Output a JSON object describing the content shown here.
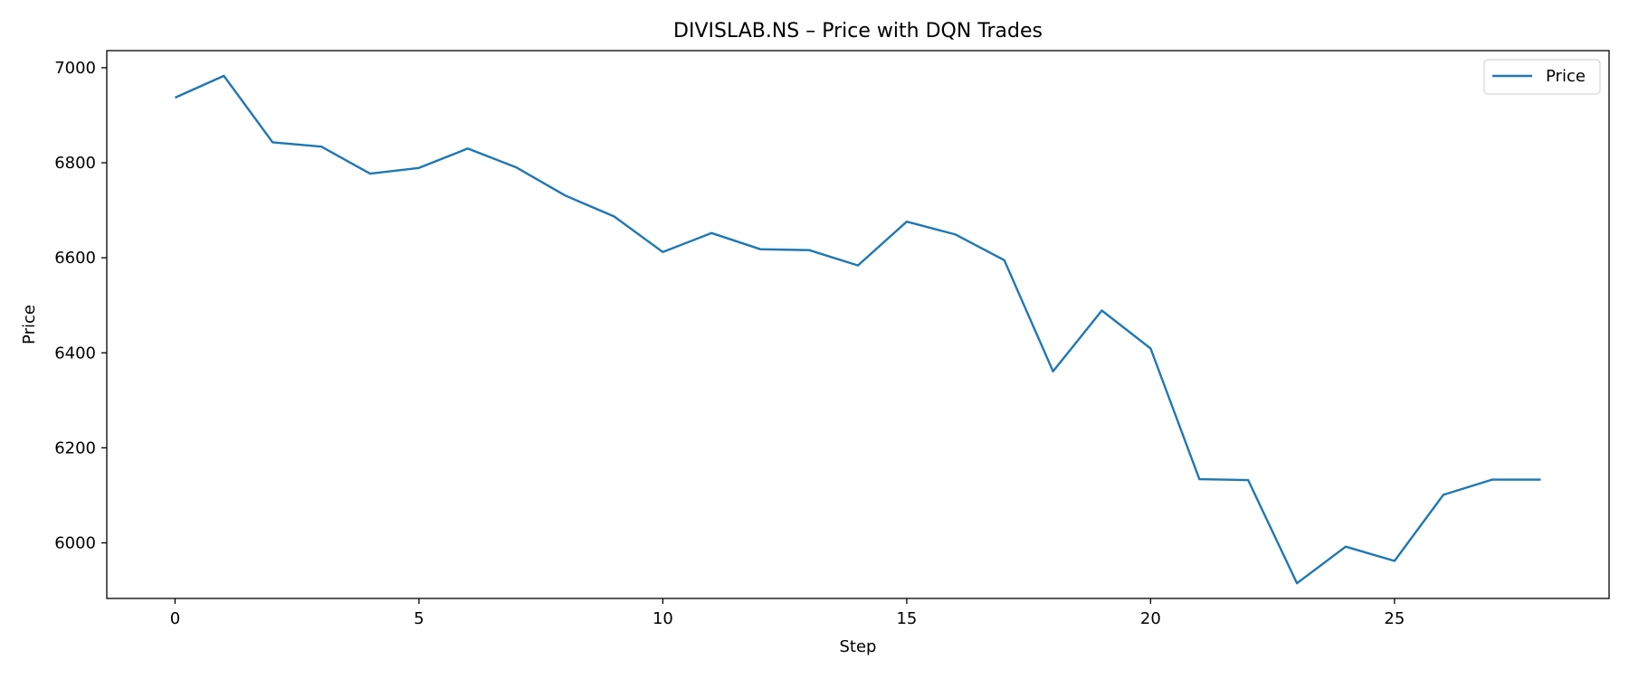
{
  "chart_data": {
    "type": "line",
    "title": "DIVISLAB.NS – Price with DQN Trades",
    "xlabel": "Step",
    "ylabel": "Price",
    "xlim": [
      -1.4,
      29.4
    ],
    "ylim": [
      5883,
      7036
    ],
    "xticks": [
      0,
      5,
      10,
      15,
      20,
      25
    ],
    "yticks": [
      6000,
      6200,
      6400,
      6600,
      6800,
      7000
    ],
    "grid": false,
    "legend_position": "top-right",
    "x": [
      0,
      1,
      2,
      3,
      4,
      5,
      6,
      7,
      8,
      9,
      10,
      11,
      12,
      13,
      14,
      15,
      16,
      17,
      18,
      19,
      20,
      21,
      22,
      23,
      24,
      25,
      26,
      27,
      28
    ],
    "series": [
      {
        "name": "Price",
        "color": "#1f77b4",
        "values": [
          6937,
          6983,
          6843,
          6834,
          6777,
          6789,
          6830,
          6790,
          6731,
          6687,
          6612,
          6652,
          6618,
          6616,
          6584,
          6676,
          6649,
          6595,
          6361,
          6489,
          6409,
          6134,
          6132,
          5915,
          5992,
          5962,
          6101,
          6133,
          6133
        ]
      }
    ]
  }
}
